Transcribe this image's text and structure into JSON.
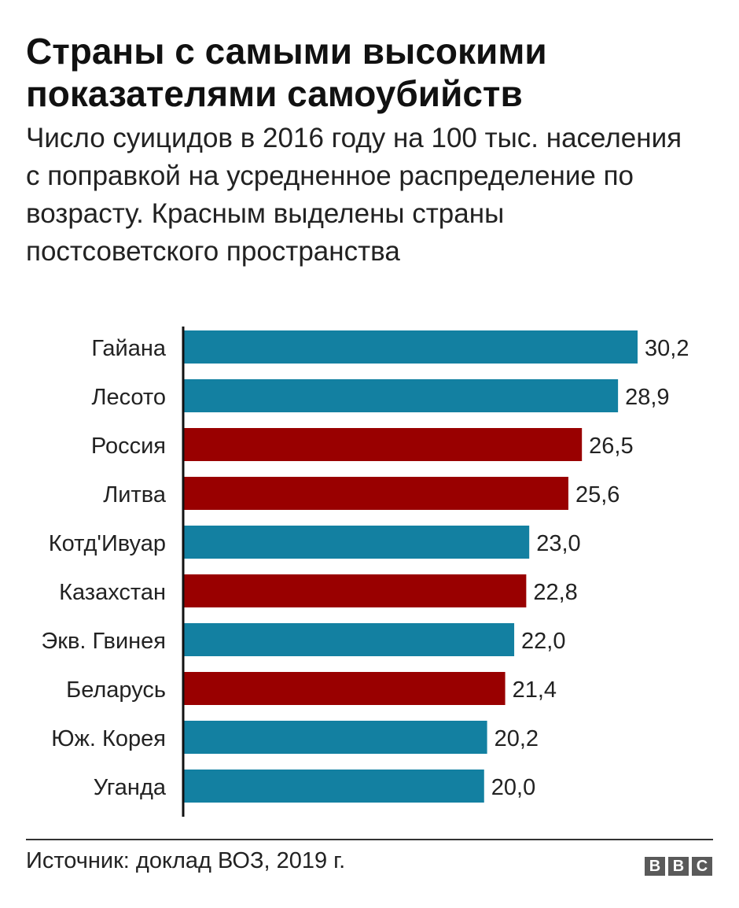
{
  "chart_data": {
    "type": "bar",
    "orientation": "horizontal",
    "title": "Страны с самыми высокими показателями самоубийств",
    "subtitle": "Число суицидов в 2016 году на 100 тыс. населения с поправкой на усредненное распределение по возрасту. Красным выделены страны постсоветского пространства",
    "categories": [
      "Гайана",
      "Лесото",
      "Россия",
      "Литва",
      "Котд'Ивуар",
      "Казахстан",
      "Экв. Гвинея",
      "Беларусь",
      "Юж. Корея",
      "Уганда"
    ],
    "values": [
      30.2,
      28.9,
      26.5,
      25.6,
      23.0,
      22.8,
      22.0,
      21.4,
      20.2,
      20.0
    ],
    "value_labels": [
      "30,2",
      "28,9",
      "26,5",
      "25,6",
      "23,0",
      "22,8",
      "22,0",
      "21,4",
      "20,2",
      "20,0"
    ],
    "highlighted": [
      false,
      false,
      true,
      true,
      false,
      true,
      false,
      true,
      false,
      false
    ],
    "xlim": [
      0,
      30.2
    ],
    "grid": false,
    "legend": "none",
    "colors": {
      "default": "#1380a1",
      "highlight": "#990000",
      "axis": "#111111"
    }
  },
  "source": "Источник: доклад ВОЗ, 2019 г.",
  "logo": [
    "B",
    "B",
    "C"
  ]
}
